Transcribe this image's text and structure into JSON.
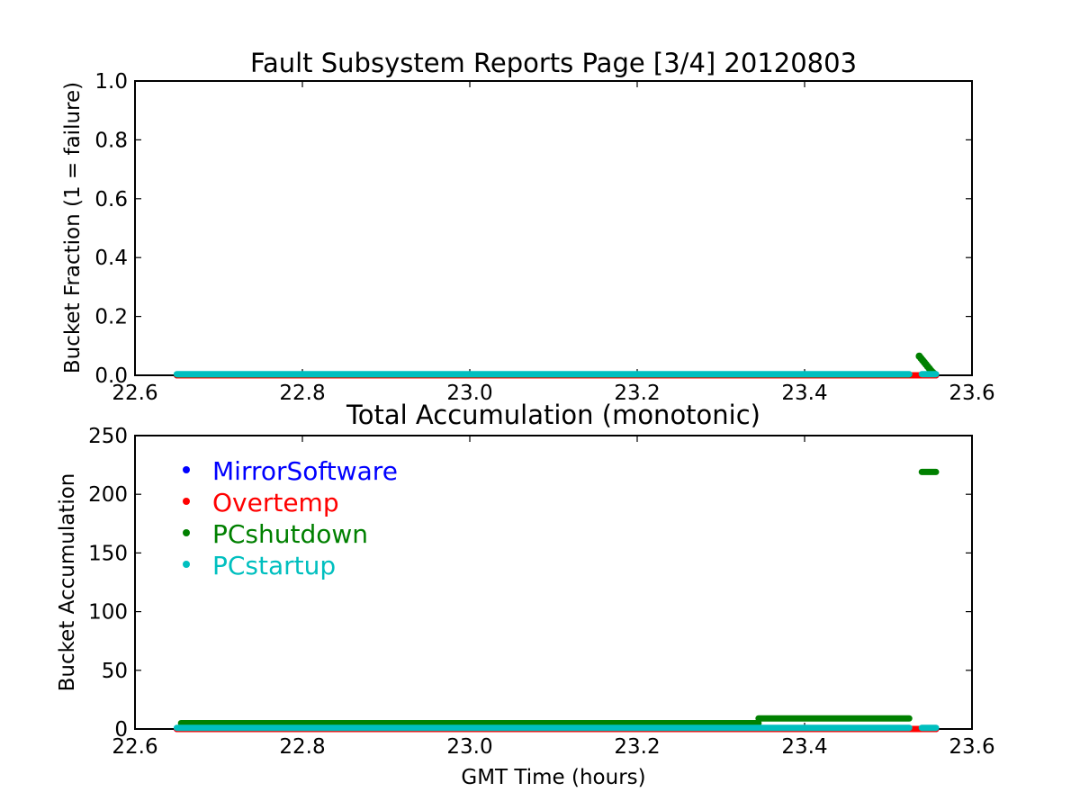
{
  "chart_data": [
    {
      "type": "scatter",
      "title": "Fault Subsystem Reports Page [3/4] 20120803",
      "xlabel": "",
      "ylabel": "Bucket Fraction (1 = failure)",
      "xlim": [
        22.6,
        23.6
      ],
      "ylim": [
        0.0,
        1.0
      ],
      "xticks": [
        "22.6",
        "22.8",
        "23.0",
        "23.2",
        "23.4",
        "23.6"
      ],
      "yticks": [
        "0.0",
        "0.2",
        "0.4",
        "0.6",
        "0.8",
        "1.0"
      ],
      "grid": false,
      "series": [
        {
          "name": "MirrorSoftware",
          "color": "#0000ff",
          "segments": [
            {
              "x": [
                22.65,
                23.557
              ],
              "y": [
                0,
                0
              ]
            }
          ],
          "points": []
        },
        {
          "name": "Overtemp",
          "color": "#ff0000",
          "segments": [
            {
              "x": [
                22.65,
                23.557
              ],
              "y": [
                0,
                0
              ]
            }
          ],
          "points": []
        },
        {
          "name": "PCshutdown",
          "color": "#008000",
          "segments": [
            {
              "x": [
                22.65,
                23.525
              ],
              "y": [
                0.003,
                0.003
              ]
            }
          ],
          "points": [
            {
              "x": 23.537,
              "y": 0.065
            },
            {
              "x": 23.539,
              "y": 0.058
            },
            {
              "x": 23.541,
              "y": 0.051
            },
            {
              "x": 23.543,
              "y": 0.044
            },
            {
              "x": 23.545,
              "y": 0.037
            },
            {
              "x": 23.547,
              "y": 0.03
            },
            {
              "x": 23.549,
              "y": 0.023
            },
            {
              "x": 23.551,
              "y": 0.016
            },
            {
              "x": 23.553,
              "y": 0.01
            },
            {
              "x": 23.555,
              "y": 0.005
            }
          ]
        },
        {
          "name": "PCstartup",
          "color": "#00bfbf",
          "segments": [
            {
              "x": [
                22.65,
                23.525
              ],
              "y": [
                0.004,
                0.004
              ]
            },
            {
              "x": [
                23.54,
                23.557
              ],
              "y": [
                0.004,
                0.004
              ]
            }
          ],
          "points": []
        }
      ]
    },
    {
      "type": "scatter",
      "title": "Total Accumulation (monotonic)",
      "xlabel": "GMT Time (hours)",
      "ylabel": "Bucket Accumulation",
      "xlim": [
        22.6,
        23.6
      ],
      "ylim": [
        0,
        250
      ],
      "xticks": [
        "22.6",
        "22.8",
        "23.0",
        "23.2",
        "23.4",
        "23.6"
      ],
      "yticks": [
        "0",
        "50",
        "100",
        "150",
        "200",
        "250"
      ],
      "grid": false,
      "legend": {
        "placement": "upper-left",
        "entries": [
          {
            "label": "MirrorSoftware",
            "color": "#0000ff"
          },
          {
            "label": "Overtemp",
            "color": "#ff0000"
          },
          {
            "label": "PCshutdown",
            "color": "#008000"
          },
          {
            "label": "PCstartup",
            "color": "#00bfbf"
          }
        ]
      },
      "series": [
        {
          "name": "MirrorSoftware",
          "color": "#0000ff",
          "segments": [
            {
              "x": [
                22.65,
                23.557
              ],
              "y": [
                0,
                0
              ]
            }
          ]
        },
        {
          "name": "Overtemp",
          "color": "#ff0000",
          "segments": [
            {
              "x": [
                22.65,
                23.557
              ],
              "y": [
                0,
                0
              ]
            }
          ]
        },
        {
          "name": "PCshutdown",
          "color": "#008000",
          "segments": [
            {
              "x": [
                22.655,
                23.345
              ],
              "y": [
                5,
                5
              ]
            },
            {
              "x": [
                23.345,
                23.525
              ],
              "y": [
                9,
                9
              ]
            },
            {
              "x": [
                23.54,
                23.557
              ],
              "y": [
                219,
                219
              ]
            }
          ]
        },
        {
          "name": "PCstartup",
          "color": "#00bfbf",
          "segments": [
            {
              "x": [
                22.65,
                23.525
              ],
              "y": [
                1,
                1
              ]
            },
            {
              "x": [
                23.54,
                23.557
              ],
              "y": [
                1,
                1
              ]
            }
          ]
        }
      ]
    }
  ]
}
